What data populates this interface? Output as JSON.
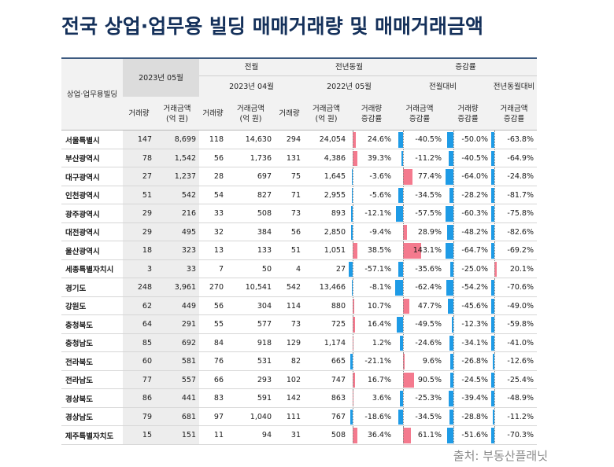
{
  "title": "전국 상업·업무용 빌딩 매매거래량 및 매매거래금액",
  "header": {
    "region_col": "상업·업무용빌딩",
    "current_period": "2023년 05월",
    "prev_month_group": "전월",
    "prev_month_period": "2023년 04월",
    "prev_year_group": "전년동월",
    "prev_year_period": "2022년 05월",
    "change_group": "증감률",
    "change_vs_prev_month": "전월대비",
    "change_vs_prev_year": "전년동월대비",
    "volume": "거래량",
    "amount_line1": "거래금액",
    "amount_line2": "(억 원)",
    "change_vol_line1": "거래량",
    "change_amt_line1": "거래금액",
    "change_line2": "증감률"
  },
  "rows": [
    {
      "region": "서울특별시",
      "cur_vol": "147",
      "cur_amt": "8,699",
      "pm_vol": "118",
      "pm_amt": "14,630",
      "py_vol": "294",
      "py_amt": "24,054",
      "mom_vol": "24.6%",
      "mom_amt": "-40.5%",
      "yoy_vol": "-50.0%",
      "yoy_amt": "-63.8%",
      "mom_vol_v": 24.6,
      "mom_amt_v": -40.5,
      "yoy_vol_v": -50.0,
      "yoy_amt_v": -63.8
    },
    {
      "region": "부산광역시",
      "cur_vol": "78",
      "cur_amt": "1,542",
      "pm_vol": "56",
      "pm_amt": "1,736",
      "py_vol": "131",
      "py_amt": "4,386",
      "mom_vol": "39.3%",
      "mom_amt": "-11.2%",
      "yoy_vol": "-40.5%",
      "yoy_amt": "-64.9%",
      "mom_vol_v": 39.3,
      "mom_amt_v": -11.2,
      "yoy_vol_v": -40.5,
      "yoy_amt_v": -64.9
    },
    {
      "region": "대구광역시",
      "cur_vol": "27",
      "cur_amt": "1,237",
      "pm_vol": "28",
      "pm_amt": "697",
      "py_vol": "75",
      "py_amt": "1,645",
      "mom_vol": "-3.6%",
      "mom_amt": "77.4%",
      "yoy_vol": "-64.0%",
      "yoy_amt": "-24.8%",
      "mom_vol_v": -3.6,
      "mom_amt_v": 77.4,
      "yoy_vol_v": -64.0,
      "yoy_amt_v": -24.8
    },
    {
      "region": "인천광역시",
      "cur_vol": "51",
      "cur_amt": "542",
      "pm_vol": "54",
      "pm_amt": "827",
      "py_vol": "71",
      "py_amt": "2,955",
      "mom_vol": "-5.6%",
      "mom_amt": "-34.5%",
      "yoy_vol": "-28.2%",
      "yoy_amt": "-81.7%",
      "mom_vol_v": -5.6,
      "mom_amt_v": -34.5,
      "yoy_vol_v": -28.2,
      "yoy_amt_v": -81.7
    },
    {
      "region": "광주광역시",
      "cur_vol": "29",
      "cur_amt": "216",
      "pm_vol": "33",
      "pm_amt": "508",
      "py_vol": "73",
      "py_amt": "893",
      "mom_vol": "-12.1%",
      "mom_amt": "-57.5%",
      "yoy_vol": "-60.3%",
      "yoy_amt": "-75.8%",
      "mom_vol_v": -12.1,
      "mom_amt_v": -57.5,
      "yoy_vol_v": -60.3,
      "yoy_amt_v": -75.8
    },
    {
      "region": "대전광역시",
      "cur_vol": "29",
      "cur_amt": "495",
      "pm_vol": "32",
      "pm_amt": "384",
      "py_vol": "56",
      "py_amt": "2,850",
      "mom_vol": "-9.4%",
      "mom_amt": "28.9%",
      "yoy_vol": "-48.2%",
      "yoy_amt": "-82.6%",
      "mom_vol_v": -9.4,
      "mom_amt_v": 28.9,
      "yoy_vol_v": -48.2,
      "yoy_amt_v": -82.6
    },
    {
      "region": "울산광역시",
      "cur_vol": "18",
      "cur_amt": "323",
      "pm_vol": "13",
      "pm_amt": "133",
      "py_vol": "51",
      "py_amt": "1,051",
      "mom_vol": "38.5%",
      "mom_amt": "143.1%",
      "yoy_vol": "-64.7%",
      "yoy_amt": "-69.2%",
      "mom_vol_v": 38.5,
      "mom_amt_v": 143.1,
      "yoy_vol_v": -64.7,
      "yoy_amt_v": -69.2
    },
    {
      "region": "세종특별자치시",
      "cur_vol": "3",
      "cur_amt": "33",
      "pm_vol": "7",
      "pm_amt": "50",
      "py_vol": "4",
      "py_amt": "27",
      "mom_vol": "-57.1%",
      "mom_amt": "-35.6%",
      "yoy_vol": "-25.0%",
      "yoy_amt": "20.1%",
      "mom_vol_v": -57.1,
      "mom_amt_v": -35.6,
      "yoy_vol_v": -25.0,
      "yoy_amt_v": 20.1
    },
    {
      "region": "경기도",
      "cur_vol": "248",
      "cur_amt": "3,961",
      "pm_vol": "270",
      "pm_amt": "10,541",
      "py_vol": "542",
      "py_amt": "13,466",
      "mom_vol": "-8.1%",
      "mom_amt": "-62.4%",
      "yoy_vol": "-54.2%",
      "yoy_amt": "-70.6%",
      "mom_vol_v": -8.1,
      "mom_amt_v": -62.4,
      "yoy_vol_v": -54.2,
      "yoy_amt_v": -70.6
    },
    {
      "region": "강원도",
      "cur_vol": "62",
      "cur_amt": "449",
      "pm_vol": "56",
      "pm_amt": "304",
      "py_vol": "114",
      "py_amt": "880",
      "mom_vol": "10.7%",
      "mom_amt": "47.7%",
      "yoy_vol": "-45.6%",
      "yoy_amt": "-49.0%",
      "mom_vol_v": 10.7,
      "mom_amt_v": 47.7,
      "yoy_vol_v": -45.6,
      "yoy_amt_v": -49.0
    },
    {
      "region": "충청북도",
      "cur_vol": "64",
      "cur_amt": "291",
      "pm_vol": "55",
      "pm_amt": "577",
      "py_vol": "73",
      "py_amt": "725",
      "mom_vol": "16.4%",
      "mom_amt": "-49.5%",
      "yoy_vol": "-12.3%",
      "yoy_amt": "-59.8%",
      "mom_vol_v": 16.4,
      "mom_amt_v": -49.5,
      "yoy_vol_v": -12.3,
      "yoy_amt_v": -59.8
    },
    {
      "region": "충청남도",
      "cur_vol": "85",
      "cur_amt": "692",
      "pm_vol": "84",
      "pm_amt": "918",
      "py_vol": "129",
      "py_amt": "1,174",
      "mom_vol": "1.2%",
      "mom_amt": "-24.6%",
      "yoy_vol": "-34.1%",
      "yoy_amt": "-41.0%",
      "mom_vol_v": 1.2,
      "mom_amt_v": -24.6,
      "yoy_vol_v": -34.1,
      "yoy_amt_v": -41.0
    },
    {
      "region": "전라북도",
      "cur_vol": "60",
      "cur_amt": "581",
      "pm_vol": "76",
      "pm_amt": "531",
      "py_vol": "82",
      "py_amt": "665",
      "mom_vol": "-21.1%",
      "mom_amt": "9.6%",
      "yoy_vol": "-26.8%",
      "yoy_amt": "-12.6%",
      "mom_vol_v": -21.1,
      "mom_amt_v": 9.6,
      "yoy_vol_v": -26.8,
      "yoy_amt_v": -12.6
    },
    {
      "region": "전라남도",
      "cur_vol": "77",
      "cur_amt": "557",
      "pm_vol": "66",
      "pm_amt": "293",
      "py_vol": "102",
      "py_amt": "747",
      "mom_vol": "16.7%",
      "mom_amt": "90.5%",
      "yoy_vol": "-24.5%",
      "yoy_amt": "-25.4%",
      "mom_vol_v": 16.7,
      "mom_amt_v": 90.5,
      "yoy_vol_v": -24.5,
      "yoy_amt_v": -25.4
    },
    {
      "region": "경상북도",
      "cur_vol": "86",
      "cur_amt": "441",
      "pm_vol": "83",
      "pm_amt": "591",
      "py_vol": "142",
      "py_amt": "863",
      "mom_vol": "3.6%",
      "mom_amt": "-25.3%",
      "yoy_vol": "-39.4%",
      "yoy_amt": "-48.9%",
      "mom_vol_v": 3.6,
      "mom_amt_v": -25.3,
      "yoy_vol_v": -39.4,
      "yoy_amt_v": -48.9
    },
    {
      "region": "경상남도",
      "cur_vol": "79",
      "cur_amt": "681",
      "pm_vol": "97",
      "pm_amt": "1,040",
      "py_vol": "111",
      "py_amt": "767",
      "mom_vol": "-18.6%",
      "mom_amt": "-34.5%",
      "yoy_vol": "-28.8%",
      "yoy_amt": "-11.2%",
      "mom_vol_v": -18.6,
      "mom_amt_v": -34.5,
      "yoy_vol_v": -28.8,
      "yoy_amt_v": -11.2
    },
    {
      "region": "제주특별자치도",
      "cur_vol": "15",
      "cur_amt": "151",
      "pm_vol": "11",
      "pm_amt": "94",
      "py_vol": "31",
      "py_amt": "508",
      "mom_vol": "36.4%",
      "mom_amt": "61.1%",
      "yoy_vol": "-51.6%",
      "yoy_amt": "-70.3%",
      "mom_vol_v": 36.4,
      "mom_amt_v": 61.1,
      "yoy_vol_v": -51.6,
      "yoy_amt_v": -70.3
    }
  ],
  "colors": {
    "positive": "#f47a8e",
    "negative": "#1e9be6",
    "title": "#14305a",
    "rule": "#3d5a80"
  },
  "source": "출처: 부동산플래닛"
}
